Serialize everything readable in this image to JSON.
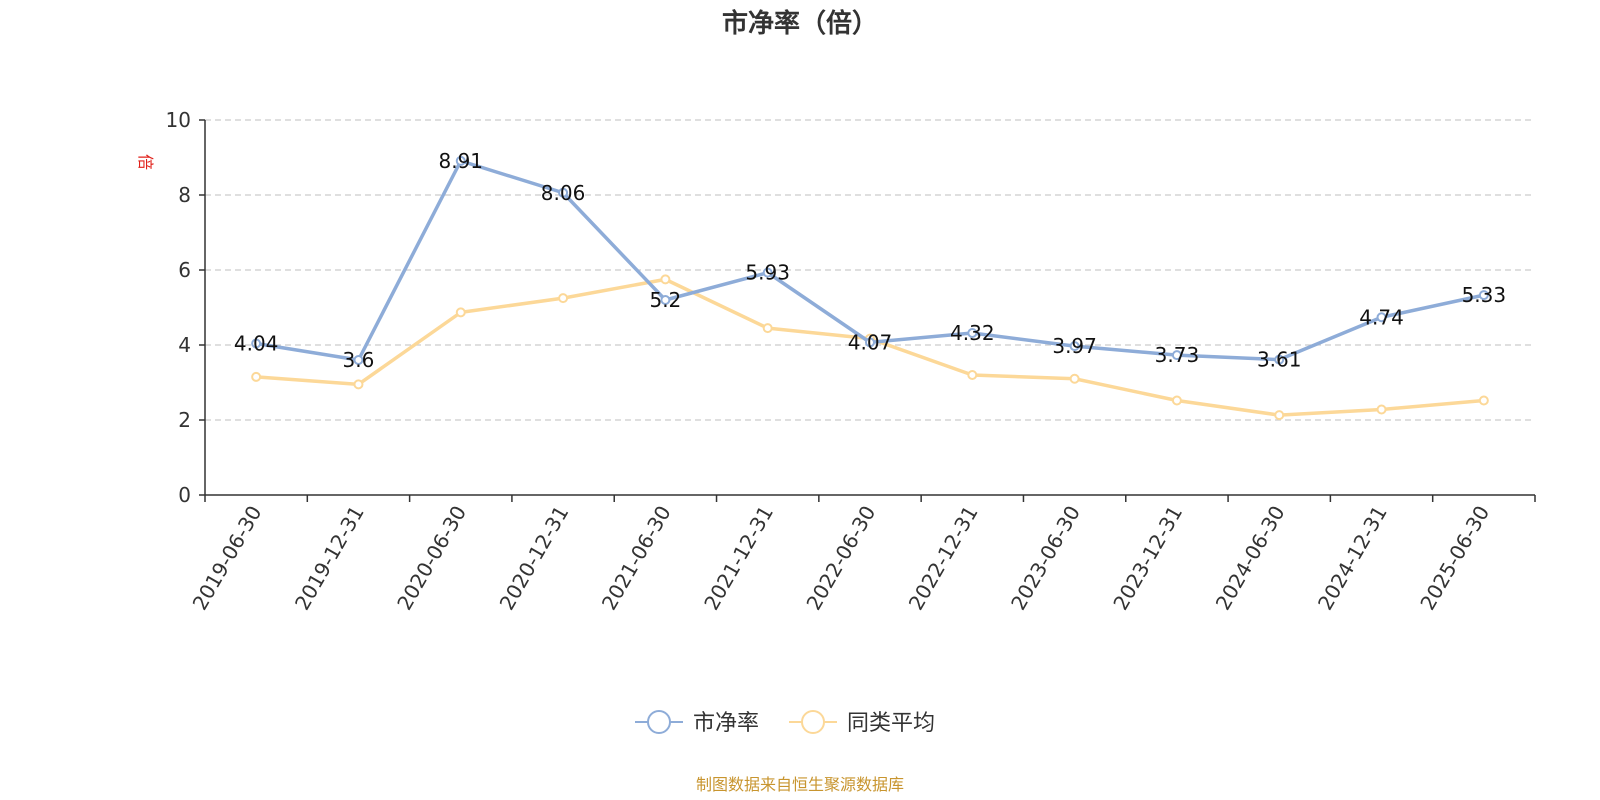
{
  "chart_data": {
    "type": "line",
    "title": "市净率（倍）",
    "ylabel": "倍",
    "ylim": [
      0,
      10
    ],
    "yticks": [
      0,
      2,
      4,
      6,
      8,
      10
    ],
    "grid": true,
    "legend_position": "bottom-center",
    "categories": [
      "2019-06-30",
      "2019-12-31",
      "2020-06-30",
      "2020-12-31",
      "2021-06-30",
      "2021-12-31",
      "2022-06-30",
      "2022-12-31",
      "2023-06-30",
      "2023-12-31",
      "2024-06-30",
      "2024-12-31",
      "2025-06-30"
    ],
    "series": [
      {
        "name": "市净率",
        "color": "#8eacd8",
        "show_labels": true,
        "values": [
          4.04,
          3.6,
          8.91,
          8.06,
          5.2,
          5.93,
          4.07,
          4.32,
          3.97,
          3.73,
          3.61,
          4.74,
          5.33
        ]
      },
      {
        "name": "同类平均",
        "color": "#fcd898",
        "show_labels": false,
        "values": [
          3.15,
          2.95,
          4.87,
          5.25,
          5.75,
          4.45,
          4.17,
          3.2,
          3.1,
          2.52,
          2.13,
          2.28,
          2.52
        ]
      }
    ]
  },
  "footer": {
    "source": "制图数据来自恒生聚源数据库"
  }
}
